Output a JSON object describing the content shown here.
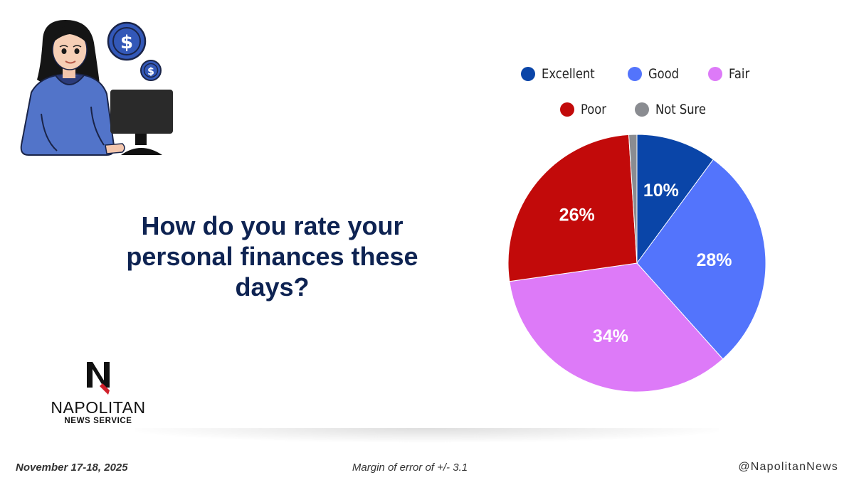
{
  "headline": "How do you rate your personal finances these days?",
  "logo": {
    "name": "NAPOLITAN",
    "sub": "NEWS SERVICE"
  },
  "footer": {
    "date": "November 17-18, 2025",
    "margin": "Margin of error of +/- 3.1",
    "handle": "@NapolitanNews"
  },
  "illustration": {
    "icon": "woman-at-computer-with-dollar-coins-icon"
  },
  "chart_data": {
    "type": "pie",
    "title": "",
    "legend_position": "top",
    "categories": [
      "Excellent",
      "Good",
      "Fair",
      "Poor",
      "Not Sure"
    ],
    "values": [
      10,
      28,
      34,
      26,
      1
    ],
    "labels": [
      "10%",
      "28%",
      "34%",
      "26%",
      ""
    ],
    "colors": [
      "#0a45a8",
      "#5374fc",
      "#dd7af8",
      "#c20a0a",
      "#8a8c91"
    ]
  }
}
